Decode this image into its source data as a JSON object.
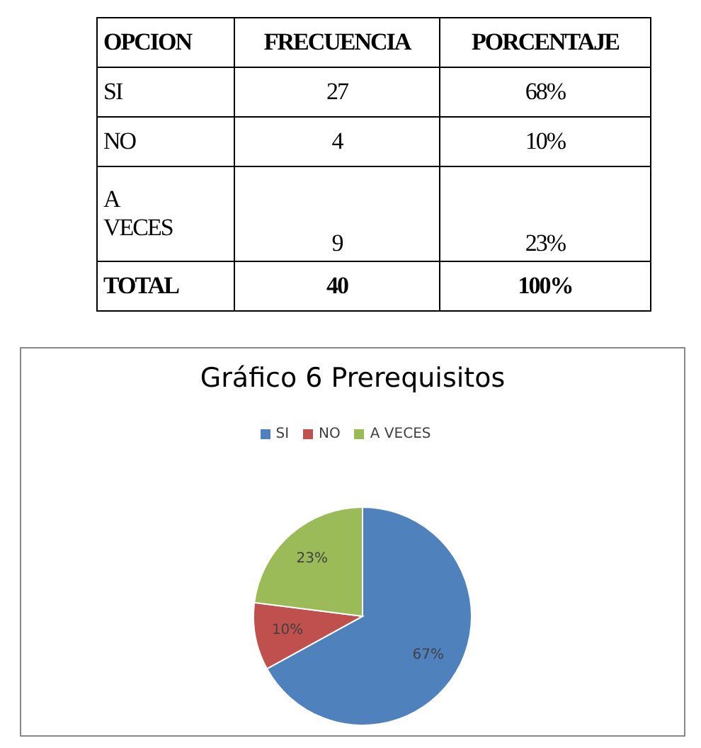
{
  "chart_data": [
    {
      "type": "other",
      "annotations": [
        "OPCION",
        "FRECUENCIA",
        "PORCENTAJE",
        "SI",
        "27",
        "68%",
        "NO",
        "4",
        "10%",
        "A VECES",
        "9",
        "23%",
        "TOTAL",
        "40",
        "100%"
      ]
    },
    {
      "type": "pie",
      "title": "Gráfico 6  Prerequisitos",
      "categories": [
        "SI",
        "NO",
        "A VECES"
      ],
      "values": [
        67,
        10,
        23
      ],
      "colors": [
        "#4f81bd",
        "#c0504d",
        "#9bbb59"
      ],
      "value_labels": [
        "67%",
        "10%",
        "23%"
      ],
      "legend": "top"
    }
  ]
}
